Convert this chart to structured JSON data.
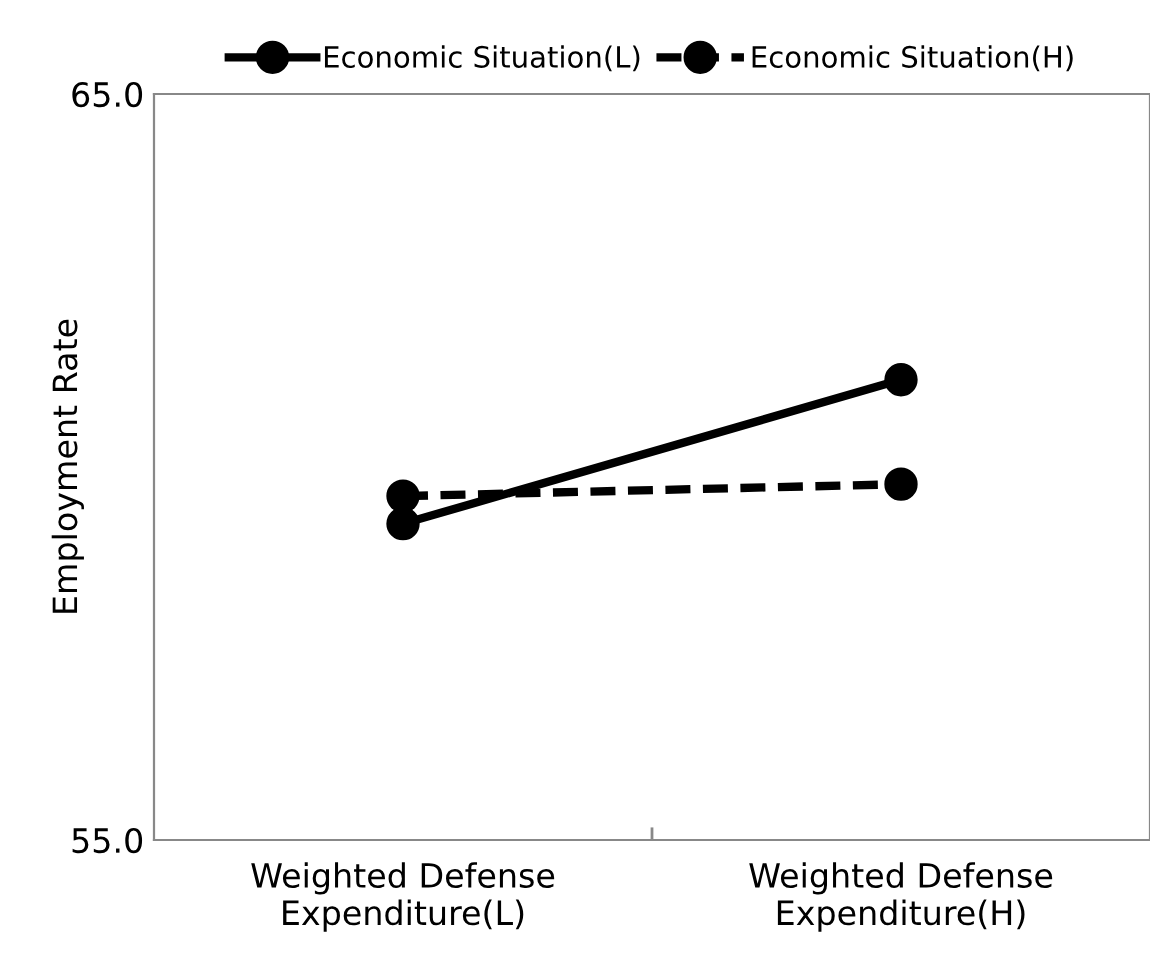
{
  "chart_data": {
    "type": "line",
    "ylabel": "Employment Rate",
    "categories": [
      "Weighted Defense\nExpenditure(L)",
      "Weighted Defense\nExpenditure(H)"
    ],
    "series": [
      {
        "name": "Economic Situation(L)",
        "color": "#000000",
        "values": [
          59.24,
          61.17
        ],
        "line_style": "solid"
      },
      {
        "name": "Economic Situation(H)",
        "color": "#000000",
        "values": [
          59.61,
          59.77
        ],
        "line_style": "dashed"
      }
    ],
    "ylim": [
      55,
      65
    ],
    "yticks": [
      {
        "value": 55,
        "label": "55.0"
      },
      {
        "value": 65,
        "label": "65.0"
      }
    ],
    "marker": "circle",
    "legend": "top",
    "grid": false
  }
}
